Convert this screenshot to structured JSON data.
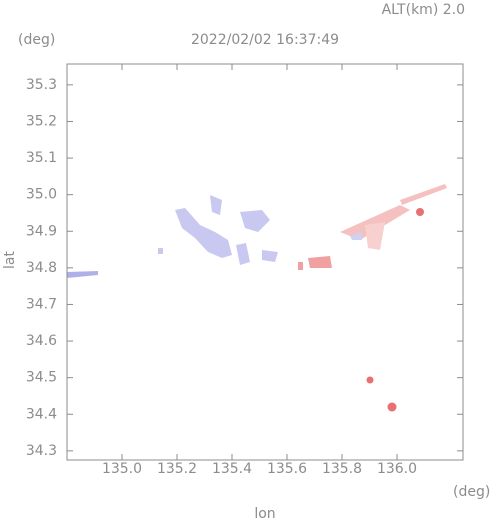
{
  "chart_data": {
    "type": "map",
    "title": "2022/02/02 16:37:49",
    "annotation": "ALT(km)  2.0",
    "y_unit": "(deg)",
    "x_unit": "(deg)",
    "xlabel": "lon",
    "ylabel": "lat",
    "xlim": [
      134.8,
      136.24
    ],
    "ylim": [
      34.275,
      35.357
    ],
    "xticks": [
      {
        "value": 135,
        "label": "135.0"
      },
      135.2,
      135.4,
      135.6,
      135.8,
      {
        "value": 136,
        "label": "136.0"
      }
    ],
    "yticks": [
      34.3,
      34.4,
      34.5,
      34.6,
      34.7,
      34.8,
      34.9,
      {
        "value": 35,
        "label": "35.0"
      },
      35.1,
      35.2,
      35.3
    ],
    "axis_color": "#8c8c8c"
  }
}
